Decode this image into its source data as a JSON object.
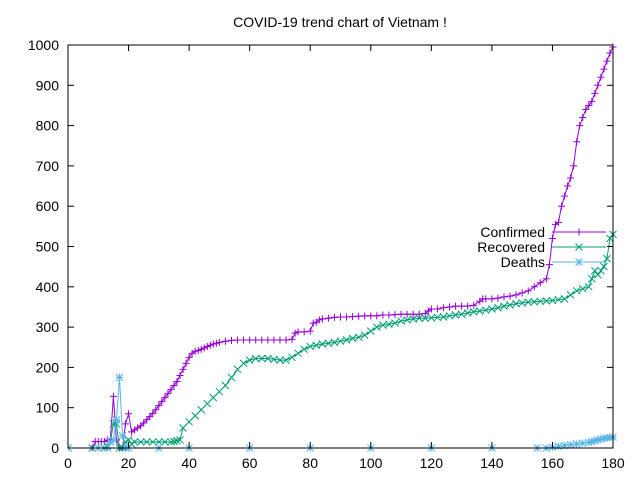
{
  "chart_data": {
    "type": "line",
    "title": "COVID-19 trend chart of Vietnam !",
    "xlabel": "",
    "ylabel": "",
    "xlim": [
      0,
      180
    ],
    "ylim": [
      0,
      1000
    ],
    "xticks": [
      "0",
      "20",
      "40",
      "60",
      "80",
      "100",
      "120",
      "140",
      "160",
      "180"
    ],
    "yticks": [
      "0",
      "100",
      "200",
      "300",
      "400",
      "500",
      "600",
      "700",
      "800",
      "900",
      "1000"
    ],
    "grid": false,
    "legend_position": "right",
    "series": [
      {
        "name": "Confirmed",
        "color": "#9400d3",
        "marker": "plus",
        "x": [
          0,
          8,
          9,
          10,
          11,
          12,
          13,
          14,
          15,
          16,
          17,
          18,
          19,
          20,
          21,
          22,
          23,
          24,
          25,
          26,
          27,
          28,
          29,
          30,
          31,
          32,
          33,
          34,
          35,
          36,
          37,
          38,
          39,
          40,
          41,
          42,
          43,
          44,
          45,
          46,
          47,
          48,
          49,
          50,
          52,
          54,
          56,
          58,
          60,
          62,
          64,
          66,
          68,
          70,
          72,
          74,
          75,
          76,
          78,
          80,
          81,
          82,
          83,
          84,
          86,
          88,
          90,
          92,
          94,
          96,
          98,
          100,
          102,
          104,
          106,
          108,
          110,
          112,
          114,
          116,
          118,
          119,
          120,
          122,
          124,
          126,
          128,
          130,
          132,
          134,
          136,
          137,
          138,
          140,
          142,
          144,
          146,
          148,
          150,
          152,
          154,
          156,
          158,
          159,
          160,
          161,
          162,
          163,
          164,
          165,
          166,
          167,
          168,
          169,
          170,
          171,
          172,
          173,
          174,
          175,
          176,
          177,
          178,
          179,
          180
        ],
        "y": [
          0,
          0,
          16,
          16,
          16,
          16,
          20,
          22,
          128,
          20,
          0,
          0,
          60,
          85,
          40,
          45,
          50,
          55,
          62,
          70,
          78,
          86,
          95,
          105,
          115,
          125,
          135,
          145,
          155,
          165,
          180,
          195,
          210,
          225,
          235,
          240,
          242,
          245,
          248,
          252,
          255,
          258,
          260,
          262,
          265,
          267,
          268,
          268,
          268,
          268,
          268,
          268,
          268,
          268,
          268,
          270,
          285,
          288,
          288,
          290,
          310,
          312,
          318,
          320,
          322,
          324,
          325,
          325,
          326,
          327,
          328,
          328,
          328,
          330,
          330,
          331,
          332,
          332,
          332,
          332,
          334,
          340,
          345,
          345,
          348,
          350,
          352,
          352,
          352,
          354,
          364,
          370,
          370,
          370,
          372,
          375,
          377,
          380,
          385,
          390,
          400,
          410,
          420,
          455,
          520,
          555,
          560,
          600,
          625,
          650,
          670,
          700,
          760,
          800,
          820,
          840,
          850,
          860,
          880,
          900,
          920,
          940,
          960,
          980,
          995
        ]
      },
      {
        "name": "Recovered",
        "color": "#009e73",
        "marker": "cross",
        "x": [
          0,
          8,
          12,
          13,
          14,
          15,
          16,
          17,
          18,
          19,
          20,
          21,
          22,
          24,
          26,
          28,
          30,
          32,
          34,
          35,
          36,
          37,
          38,
          40,
          42,
          44,
          46,
          48,
          50,
          52,
          54,
          56,
          58,
          60,
          62,
          64,
          66,
          68,
          70,
          72,
          74,
          76,
          78,
          80,
          82,
          84,
          86,
          88,
          90,
          92,
          94,
          96,
          98,
          100,
          102,
          104,
          106,
          108,
          110,
          112,
          114,
          116,
          118,
          120,
          122,
          124,
          126,
          128,
          130,
          132,
          134,
          136,
          138,
          140,
          142,
          144,
          146,
          148,
          150,
          152,
          154,
          156,
          158,
          160,
          162,
          164,
          166,
          168,
          170,
          172,
          173,
          174,
          175,
          176,
          177,
          178,
          179,
          180
        ],
        "y": [
          0,
          0,
          0,
          5,
          15,
          60,
          60,
          0,
          0,
          15,
          20,
          10,
          15,
          15,
          15,
          15,
          15,
          15,
          15,
          16,
          18,
          20,
          50,
          65,
          80,
          95,
          110,
          125,
          140,
          155,
          175,
          195,
          210,
          218,
          222,
          222,
          222,
          220,
          218,
          218,
          225,
          235,
          245,
          252,
          255,
          258,
          260,
          262,
          265,
          268,
          272,
          275,
          280,
          290,
          300,
          305,
          307,
          310,
          315,
          318,
          320,
          322,
          322,
          323,
          324,
          325,
          328,
          330,
          332,
          335,
          338,
          340,
          342,
          345,
          348,
          352,
          355,
          358,
          360,
          362,
          363,
          364,
          365,
          366,
          368,
          370,
          380,
          390,
          395,
          400,
          420,
          440,
          430,
          440,
          450,
          470,
          520,
          530
        ]
      },
      {
        "name": "Deaths",
        "color": "#56b4e9",
        "marker": "star",
        "x": [
          0,
          10,
          13,
          14,
          15,
          16,
          17,
          18,
          19,
          20,
          30,
          40,
          60,
          80,
          100,
          120,
          140,
          155,
          158,
          160,
          162,
          164,
          166,
          168,
          170,
          172,
          173,
          174,
          175,
          176,
          177,
          178,
          179,
          180
        ],
        "y": [
          0,
          0,
          0,
          15,
          20,
          70,
          175,
          30,
          0,
          0,
          0,
          0,
          0,
          0,
          0,
          0,
          0,
          0,
          0,
          2,
          4,
          6,
          8,
          10,
          12,
          14,
          16,
          18,
          20,
          22,
          24,
          25,
          26,
          27
        ]
      }
    ]
  }
}
